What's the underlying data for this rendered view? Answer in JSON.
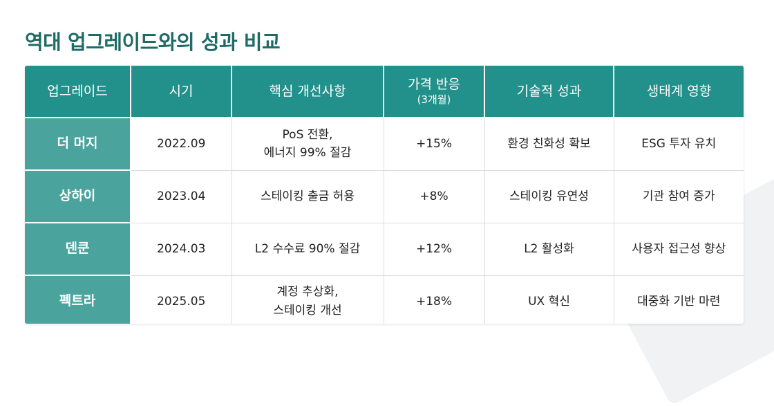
{
  "title": "역대 업그레이드와의 성과 비교",
  "headers": [
    {
      "main": "업그레이드",
      "sub": ""
    },
    {
      "main": "시기",
      "sub": ""
    },
    {
      "main": "핵심 개선사항",
      "sub": ""
    },
    {
      "main": "가격 반응",
      "sub": "(3개월)"
    },
    {
      "main": "기술적 성과",
      "sub": ""
    },
    {
      "main": "생태계 영향",
      "sub": ""
    }
  ],
  "rows": [
    {
      "name": "더 머지",
      "period": "2022.09",
      "improvement": [
        "PoS 전환,",
        "에너지 99% 절감"
      ],
      "price": "+15%",
      "tech": "환경 친화성 확보",
      "ecosystem": "ESG 투자 유치"
    },
    {
      "name": "상하이",
      "period": "2023.04",
      "improvement": [
        "스테이킹 출금 허용",
        ""
      ],
      "price": "+8%",
      "tech": "스테이킹 유연성",
      "ecosystem": "기관 참여 증가"
    },
    {
      "name": "덴쿤",
      "period": "2024.03",
      "improvement": [
        "L2 수수료 90% 절감",
        ""
      ],
      "price": "+12%",
      "tech": "L2 활성화",
      "ecosystem": "사용자 접근성 향상"
    },
    {
      "name": "펙트라",
      "period": "2025.05",
      "improvement": [
        "계정 추상화,",
        "스테이킹 개선"
      ],
      "price": "+18%",
      "tech": "UX 혁신",
      "ecosystem": "대중화 기반 마련"
    }
  ],
  "colors": {
    "title": "#1f6b66",
    "header_bg": "#23918b",
    "name_cell_bg": "#4aa39d"
  }
}
